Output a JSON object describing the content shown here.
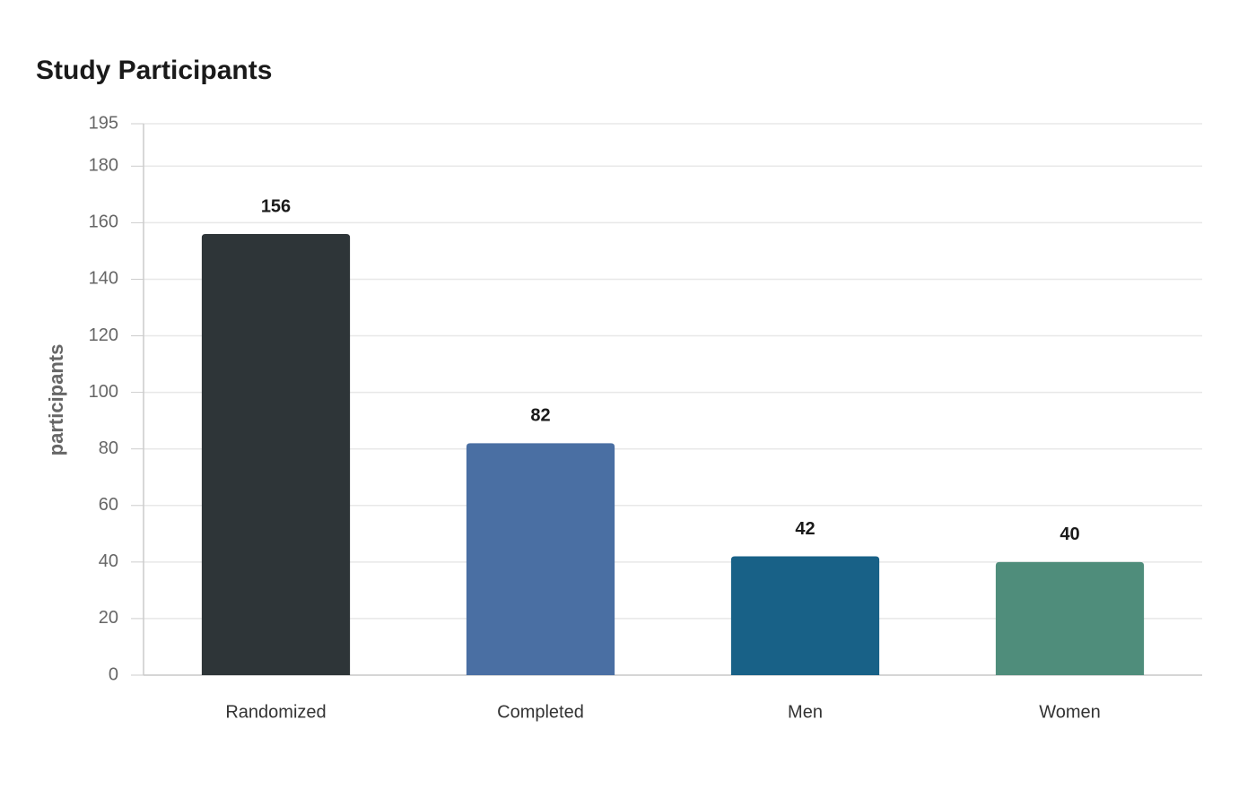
{
  "chart_data": {
    "type": "bar",
    "title": "Study Participants",
    "y_label": "participants",
    "categories": [
      "Randomized",
      "Completed",
      "Men",
      "Women"
    ],
    "values": [
      156,
      82,
      42,
      40
    ],
    "colors": [
      "#2e3538",
      "#4a6fa3",
      "#186187",
      "#4f8d7b"
    ],
    "ylim": [
      0,
      195
    ],
    "yticks": [
      0,
      20,
      40,
      60,
      80,
      100,
      120,
      140,
      160,
      180,
      195
    ],
    "grid": true
  }
}
